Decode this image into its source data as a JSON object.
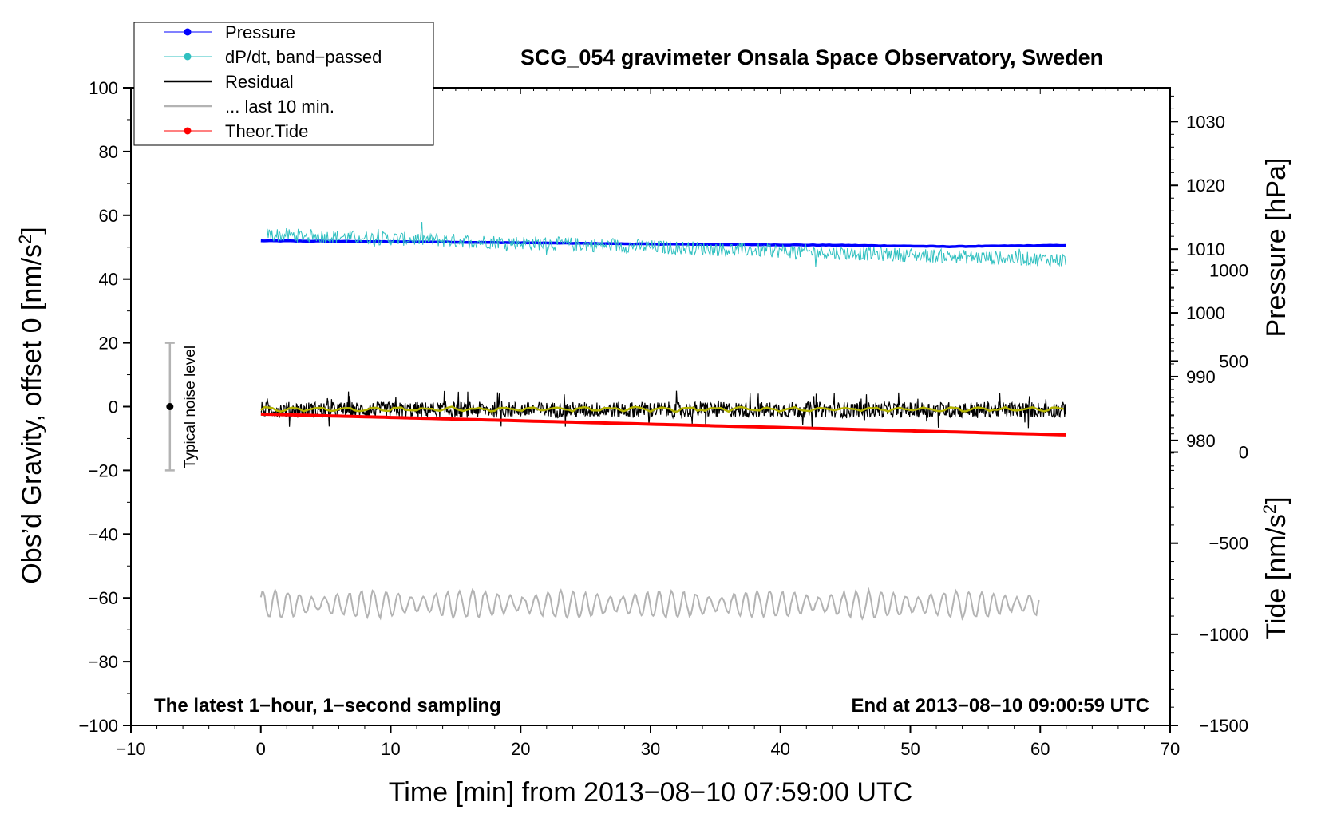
{
  "chart_data": {
    "type": "line",
    "title": "SCG_054 gravimeter Onsala Space Observatory, Sweden",
    "xlabel": "Time [min] from 2013−08−10 07:59:00 UTC",
    "ylabel": "Obs’d Gravity, offset 0 [nm/s",
    "ylabel_sup": "2",
    "ylabel_close": "]",
    "xlim": [
      -10,
      70
    ],
    "ylim": [
      -100,
      100
    ],
    "xticks": [
      -10,
      0,
      10,
      20,
      30,
      40,
      50,
      60,
      70
    ],
    "xtick_labels": [
      "−10",
      "0",
      "10",
      "20",
      "30",
      "40",
      "50",
      "60",
      "70"
    ],
    "yticks": [
      -100,
      -80,
      -60,
      -40,
      -20,
      0,
      20,
      40,
      60,
      80,
      100
    ],
    "ytick_labels": [
      "−100",
      "−80",
      "−60",
      "−40",
      "−20",
      "0",
      "20",
      "40",
      "60",
      "80",
      "100"
    ],
    "pressure_axis": {
      "label": "Pressure [hPa]",
      "ticks": [
        980,
        990,
        1000,
        1010,
        1020,
        1030
      ],
      "range": [
        935.3,
        1035.3
      ]
    },
    "tide_axis": {
      "label": "Tide [nm/s",
      "label_sup": "2",
      "label_close": "]",
      "ticks": [
        -1500,
        -1000,
        -500,
        0,
        500,
        1000
      ],
      "tick_labels": [
        "−1500",
        "−1000",
        "−500",
        "0",
        "500",
        "1000"
      ],
      "range": [
        -1500,
        2000
      ]
    },
    "series": [
      {
        "name": "Pressure",
        "color": "#0000ff",
        "x": [
          0,
          15,
          30,
          45,
          53,
          62
        ],
        "values": [
          1011.3,
          1011.1,
          1010.8,
          1010.6,
          1010.4,
          1010.6
        ],
        "axis": "pressure"
      },
      {
        "name": "dP/dt, band−passed",
        "color": "#30c0c0",
        "x": [
          0,
          62
        ],
        "values": [
          54,
          46
        ],
        "amplitude": 2.2,
        "axis": "left"
      },
      {
        "name": "Residual",
        "color": "#000000",
        "x": [
          0,
          62
        ],
        "values": [
          -1,
          -1
        ],
        "amplitude": 2.5,
        "axis": "left"
      },
      {
        "name": "... last 10 min.",
        "color": "#b3b3b3",
        "x": [
          0,
          60
        ],
        "values": [
          -62,
          -62
        ],
        "amplitude": 3.5,
        "axis": "left"
      },
      {
        "name": "Theor.Tide",
        "color": "#ff0000",
        "x": [
          0,
          62
        ],
        "values": [
          209,
          95
        ],
        "axis": "tide"
      }
    ],
    "smoothed_residual": {
      "color": "#b4b400",
      "x": [
        0,
        62
      ],
      "values": [
        -0.8,
        -0.8
      ]
    },
    "noise_bar": {
      "label": "Typical noise level",
      "x": -7,
      "center": 0,
      "range": [
        -20,
        20
      ],
      "color": "#b3b3b3"
    },
    "annotations": {
      "left": "The latest 1−hour, 1−second sampling",
      "right": "End at 2013−08−10 09:00:59 UTC"
    },
    "legend_position": "top-left"
  }
}
